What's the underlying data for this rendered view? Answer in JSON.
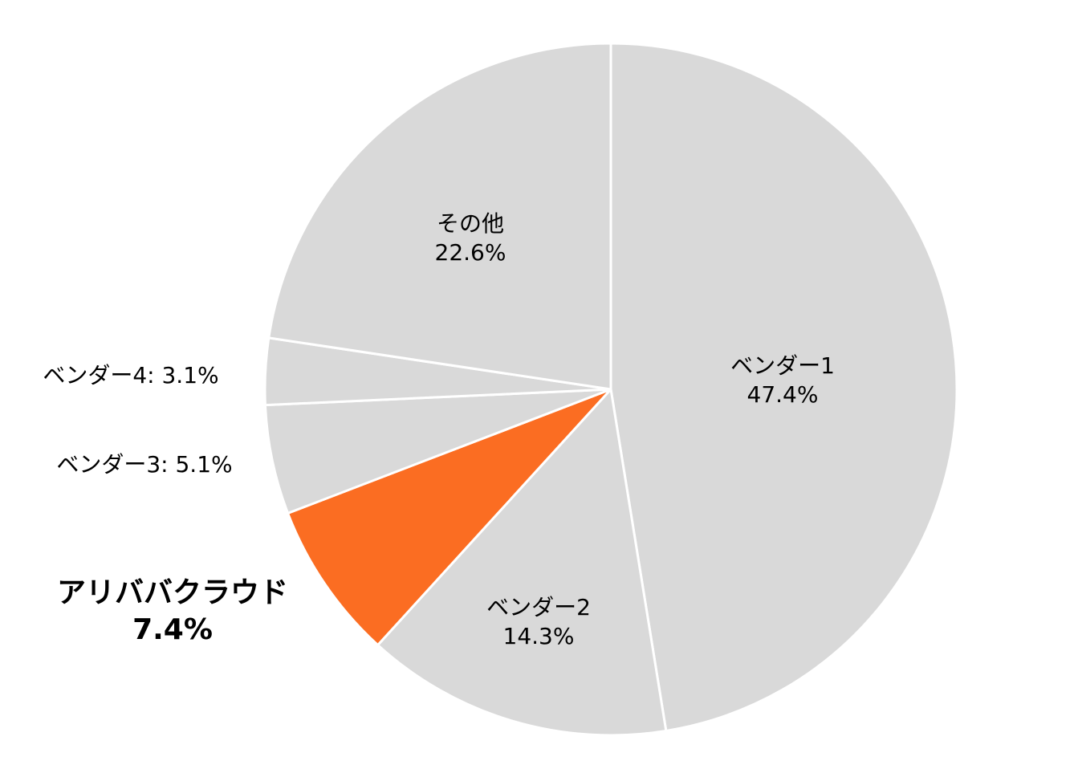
{
  "chart_data": {
    "type": "pie",
    "start": "12 o'clock",
    "direction": "clockwise",
    "slices": [
      {
        "name": "ベンダー1",
        "value": 47.4,
        "value_label": "47.4%",
        "color": "#d9d9d9",
        "label_style": "inside"
      },
      {
        "name": "ベンダー2",
        "value": 14.3,
        "value_label": "14.3%",
        "color": "#d9d9d9",
        "label_style": "inside"
      },
      {
        "name": "アリババクラウド",
        "value": 7.4,
        "value_label": "7.4%",
        "color": "#fb6d22",
        "label_style": "outside-bold"
      },
      {
        "name": "ベンダー3",
        "value": 5.1,
        "value_label": "5.1%",
        "color": "#d9d9d9",
        "label_style": "outside-inline"
      },
      {
        "name": "ベンダー4",
        "value": 3.1,
        "value_label": "3.1%",
        "color": "#d9d9d9",
        "label_style": "outside-inline"
      },
      {
        "name": "その他",
        "value": 22.6,
        "value_label": "22.6%",
        "color": "#d9d9d9",
        "label_style": "inside"
      }
    ],
    "slice_border_color": "#ffffff",
    "legend": "none"
  }
}
